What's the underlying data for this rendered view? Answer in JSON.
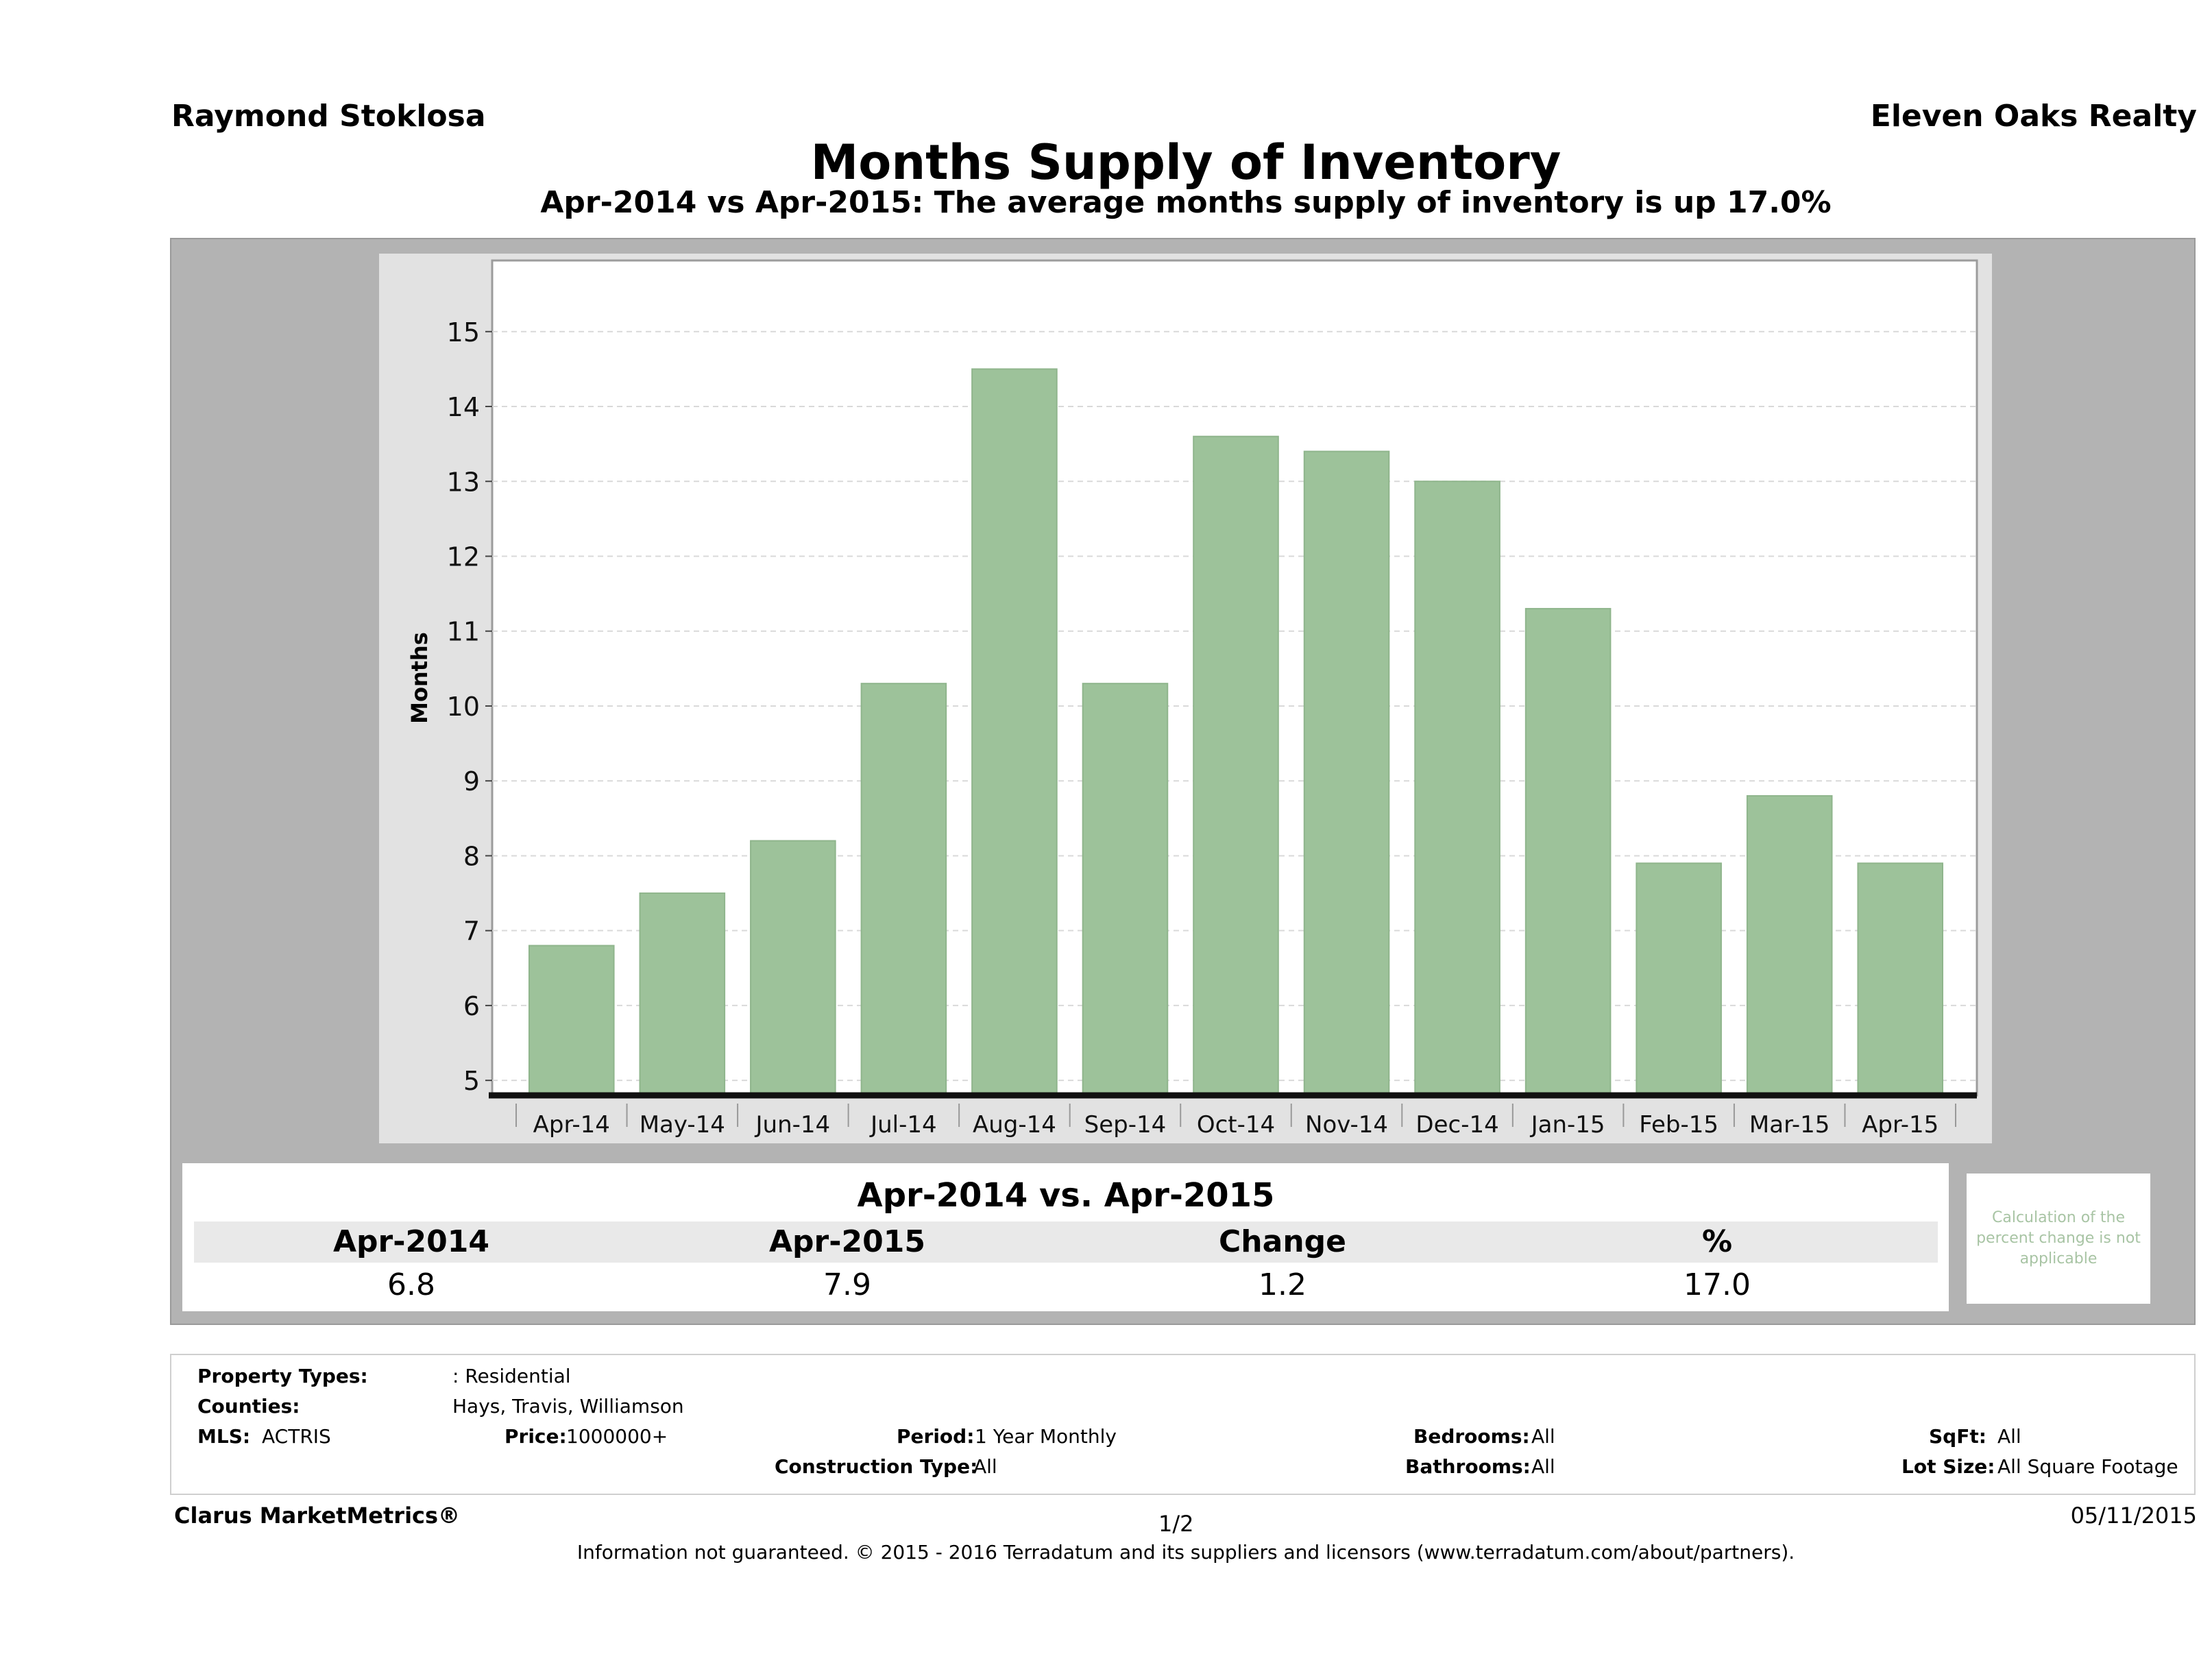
{
  "header": {
    "agent_name": "Raymond Stoklosa",
    "brokerage": "Eleven Oaks Realty",
    "title": "Months Supply of Inventory",
    "subtitle": "Apr-2014 vs Apr-2015: The average months supply of inventory is up 17.0%"
  },
  "chart_data": {
    "type": "bar",
    "ylabel": "Months",
    "xlabel": "",
    "ylim": [
      4.8,
      15.95
    ],
    "yticks": [
      5,
      6,
      7,
      8,
      9,
      10,
      11,
      12,
      13,
      14,
      15
    ],
    "grid": true,
    "bar_color": "#9dc29a",
    "categories": [
      "Apr-14",
      "May-14",
      "Jun-14",
      "Jul-14",
      "Aug-14",
      "Sep-14",
      "Oct-14",
      "Nov-14",
      "Dec-14",
      "Jan-15",
      "Feb-15",
      "Mar-15",
      "Apr-15"
    ],
    "values": [
      6.8,
      7.5,
      8.2,
      10.3,
      14.5,
      10.3,
      13.6,
      13.4,
      13.0,
      11.3,
      7.9,
      8.8,
      7.9
    ]
  },
  "comparison": {
    "heading": "Apr-2014 vs. Apr-2015",
    "labels": [
      "Apr-2014",
      "Apr-2015",
      "Change",
      "%"
    ],
    "values": [
      "6.8",
      "7.9",
      "1.2",
      "17.0"
    ],
    "note": "Calculation of the percent change is not applicable",
    "note_color": "#a8c4a4"
  },
  "criteria": {
    "property_types_label": "Property Types:",
    "property_types_value": ": Residential",
    "counties_label": "Counties:",
    "counties_value": "Hays, Travis, Williamson",
    "mls_label": "MLS:",
    "mls_value": "ACTRIS",
    "price_label": "Price:",
    "price_value": "1000000+",
    "period_label": "Period:",
    "period_value": "1 Year Monthly",
    "construction_label": "Construction Type:",
    "construction_value": "All",
    "bedrooms_label": "Bedrooms:",
    "bedrooms_value": "All",
    "bathrooms_label": "Bathrooms:",
    "bathrooms_value": "All",
    "sqft_label": "SqFt:",
    "sqft_value": "All",
    "lot_size_label": "Lot Size:",
    "lot_size_value": "All Square Footage"
  },
  "footer": {
    "brand": "Clarus MarketMetrics®",
    "page": "1/2",
    "date": "05/11/2015",
    "disclaimer": "Information not guaranteed. © 2015 - 2016 Terradatum and its suppliers and licensors (www.terradatum.com/about/partners)."
  }
}
